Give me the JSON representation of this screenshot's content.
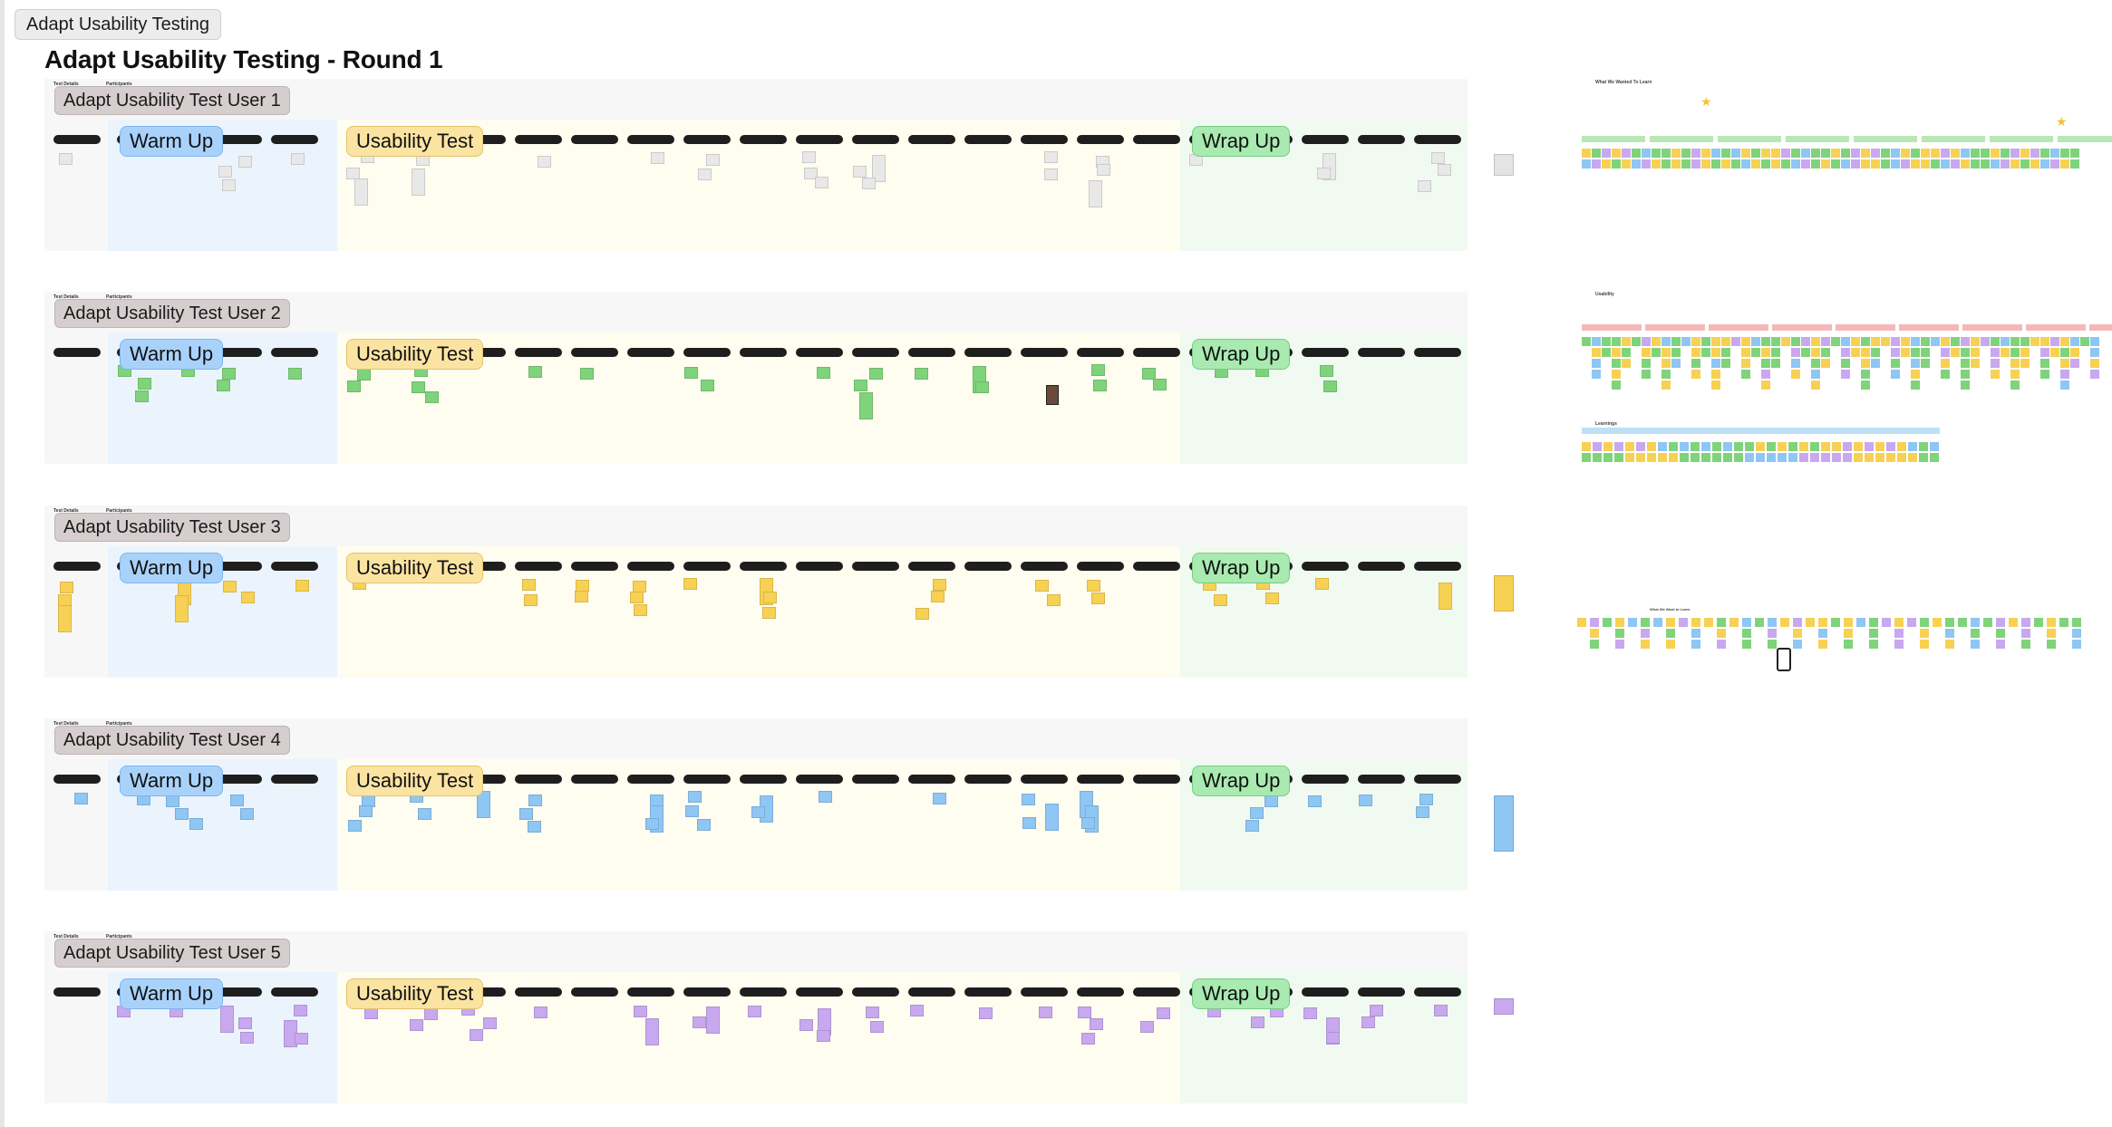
{
  "board": {
    "tag": "Adapt Usability Testing",
    "title": "Adapt Usability Testing - Round 1"
  },
  "section_labels": {
    "warm": "Warm Up",
    "usability": "Usability Test",
    "wrap": "Wrap Up"
  },
  "tiny_labels": {
    "test_details": "Test Details",
    "participants": "Participants"
  },
  "sessions": [
    {
      "label": "Adapt Usability Test User 1",
      "note_color": "#e8e8e8",
      "tint": "gray"
    },
    {
      "label": "Adapt Usability Test User 2",
      "note_color": "#7fd37b",
      "tint": "green"
    },
    {
      "label": "Adapt Usability Test User 3",
      "note_color": "#f7d154",
      "tint": "yellow"
    },
    {
      "label": "Adapt Usability Test User 4",
      "note_color": "#8ec6f4",
      "tint": "blue"
    },
    {
      "label": "Adapt Usability Test User 5",
      "note_color": "#c8a8ee",
      "tint": "purple"
    }
  ],
  "summary": {
    "heading_top": "What We Wanted To Learn",
    "heading_mid": "Usability",
    "heading_low": "Learnings",
    "heading_small": "What We Want to Learn"
  },
  "colors": {
    "warm_zone": "#ebf4fd",
    "usability_zone": "#fffcf0",
    "wrap_zone": "#f1faf1",
    "session_bg": "#f7f7f7",
    "user_label_bg": "#d6cece",
    "bar": "#1e1e1e",
    "summary_green": "#b7e8b3",
    "summary_red": "#f5b8b8",
    "summary_blue": "#bde0f7"
  }
}
